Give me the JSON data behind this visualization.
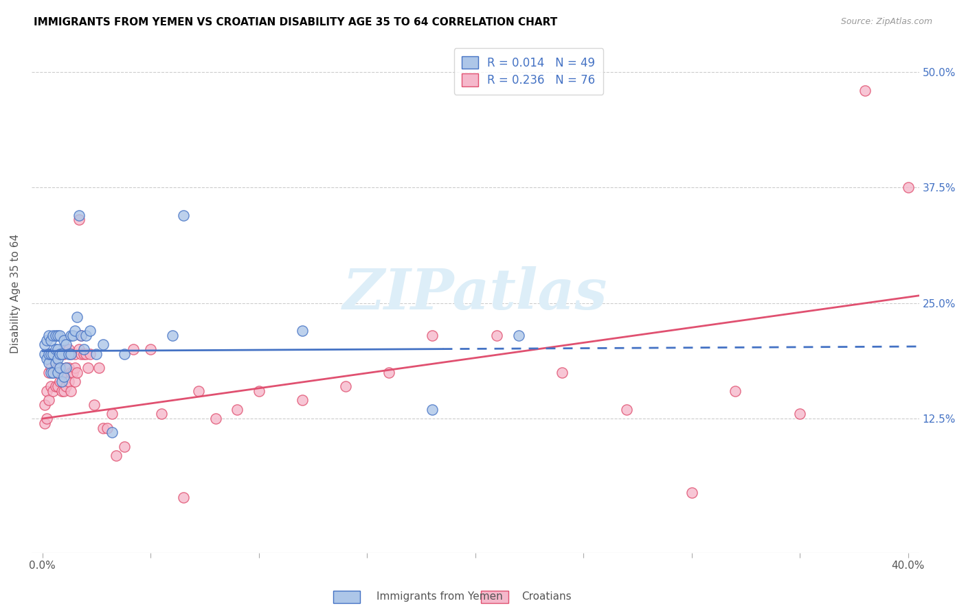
{
  "title": "IMMIGRANTS FROM YEMEN VS CROATIAN DISABILITY AGE 35 TO 64 CORRELATION CHART",
  "source": "Source: ZipAtlas.com",
  "ylabel": "Disability Age 35 to 64",
  "ytick_vals": [
    0.0,
    0.125,
    0.25,
    0.375,
    0.5
  ],
  "ytick_labels": [
    "",
    "12.5%",
    "25.0%",
    "37.5%",
    "50.0%"
  ],
  "xtick_vals": [
    0.0,
    0.05,
    0.1,
    0.15,
    0.2,
    0.25,
    0.3,
    0.35,
    0.4
  ],
  "xlim": [
    -0.005,
    0.405
  ],
  "ylim": [
    -0.02,
    0.54
  ],
  "watermark": "ZIPatlas",
  "legend_r1": "R = 0.014",
  "legend_n1": "N = 49",
  "legend_r2": "R = 0.236",
  "legend_n2": "N = 76",
  "legend_label1": "Immigrants from Yemen",
  "legend_label2": "Croatians",
  "color_blue": "#adc6e8",
  "color_pink": "#f5b8cb",
  "line_blue": "#4472c4",
  "line_pink": "#e05070",
  "trendline_blue_x0": 0.0,
  "trendline_blue_x_solid_end": 0.185,
  "trendline_blue_x1": 0.405,
  "trendline_blue_y0": 0.198,
  "trendline_blue_y1": 0.203,
  "trendline_pink_x0": 0.0,
  "trendline_pink_x1": 0.405,
  "trendline_pink_y0": 0.125,
  "trendline_pink_y1": 0.258,
  "blue_points_x": [
    0.001,
    0.001,
    0.002,
    0.002,
    0.003,
    0.003,
    0.003,
    0.004,
    0.004,
    0.004,
    0.005,
    0.005,
    0.005,
    0.006,
    0.006,
    0.006,
    0.007,
    0.007,
    0.007,
    0.007,
    0.008,
    0.008,
    0.008,
    0.009,
    0.009,
    0.01,
    0.01,
    0.011,
    0.011,
    0.012,
    0.013,
    0.013,
    0.014,
    0.015,
    0.016,
    0.017,
    0.018,
    0.019,
    0.02,
    0.022,
    0.025,
    0.028,
    0.032,
    0.038,
    0.06,
    0.065,
    0.12,
    0.18,
    0.22
  ],
  "blue_points_y": [
    0.195,
    0.205,
    0.19,
    0.21,
    0.185,
    0.195,
    0.215,
    0.175,
    0.195,
    0.21,
    0.175,
    0.195,
    0.215,
    0.185,
    0.2,
    0.215,
    0.175,
    0.19,
    0.2,
    0.215,
    0.18,
    0.195,
    0.215,
    0.165,
    0.195,
    0.17,
    0.21,
    0.18,
    0.205,
    0.195,
    0.195,
    0.215,
    0.215,
    0.22,
    0.235,
    0.345,
    0.215,
    0.2,
    0.215,
    0.22,
    0.195,
    0.205,
    0.11,
    0.195,
    0.215,
    0.345,
    0.22,
    0.135,
    0.215
  ],
  "pink_points_x": [
    0.001,
    0.001,
    0.002,
    0.002,
    0.003,
    0.003,
    0.004,
    0.004,
    0.004,
    0.005,
    0.005,
    0.005,
    0.006,
    0.006,
    0.006,
    0.007,
    0.007,
    0.007,
    0.008,
    0.008,
    0.008,
    0.009,
    0.009,
    0.009,
    0.01,
    0.01,
    0.01,
    0.011,
    0.011,
    0.011,
    0.012,
    0.012,
    0.012,
    0.013,
    0.013,
    0.013,
    0.014,
    0.015,
    0.015,
    0.015,
    0.016,
    0.017,
    0.017,
    0.018,
    0.018,
    0.019,
    0.02,
    0.021,
    0.022,
    0.024,
    0.026,
    0.028,
    0.03,
    0.032,
    0.034,
    0.038,
    0.042,
    0.05,
    0.055,
    0.065,
    0.072,
    0.08,
    0.09,
    0.1,
    0.12,
    0.14,
    0.16,
    0.18,
    0.21,
    0.24,
    0.27,
    0.3,
    0.32,
    0.35,
    0.38,
    0.4
  ],
  "pink_points_y": [
    0.12,
    0.14,
    0.125,
    0.155,
    0.145,
    0.175,
    0.16,
    0.18,
    0.195,
    0.155,
    0.175,
    0.195,
    0.16,
    0.18,
    0.195,
    0.16,
    0.18,
    0.195,
    0.165,
    0.18,
    0.195,
    0.155,
    0.175,
    0.195,
    0.155,
    0.175,
    0.195,
    0.16,
    0.18,
    0.2,
    0.165,
    0.18,
    0.2,
    0.155,
    0.175,
    0.195,
    0.175,
    0.165,
    0.18,
    0.195,
    0.175,
    0.2,
    0.34,
    0.195,
    0.215,
    0.195,
    0.195,
    0.18,
    0.195,
    0.14,
    0.18,
    0.115,
    0.115,
    0.13,
    0.085,
    0.095,
    0.2,
    0.2,
    0.13,
    0.04,
    0.155,
    0.125,
    0.135,
    0.155,
    0.145,
    0.16,
    0.175,
    0.215,
    0.215,
    0.175,
    0.135,
    0.045,
    0.155,
    0.13,
    0.48,
    0.375
  ]
}
